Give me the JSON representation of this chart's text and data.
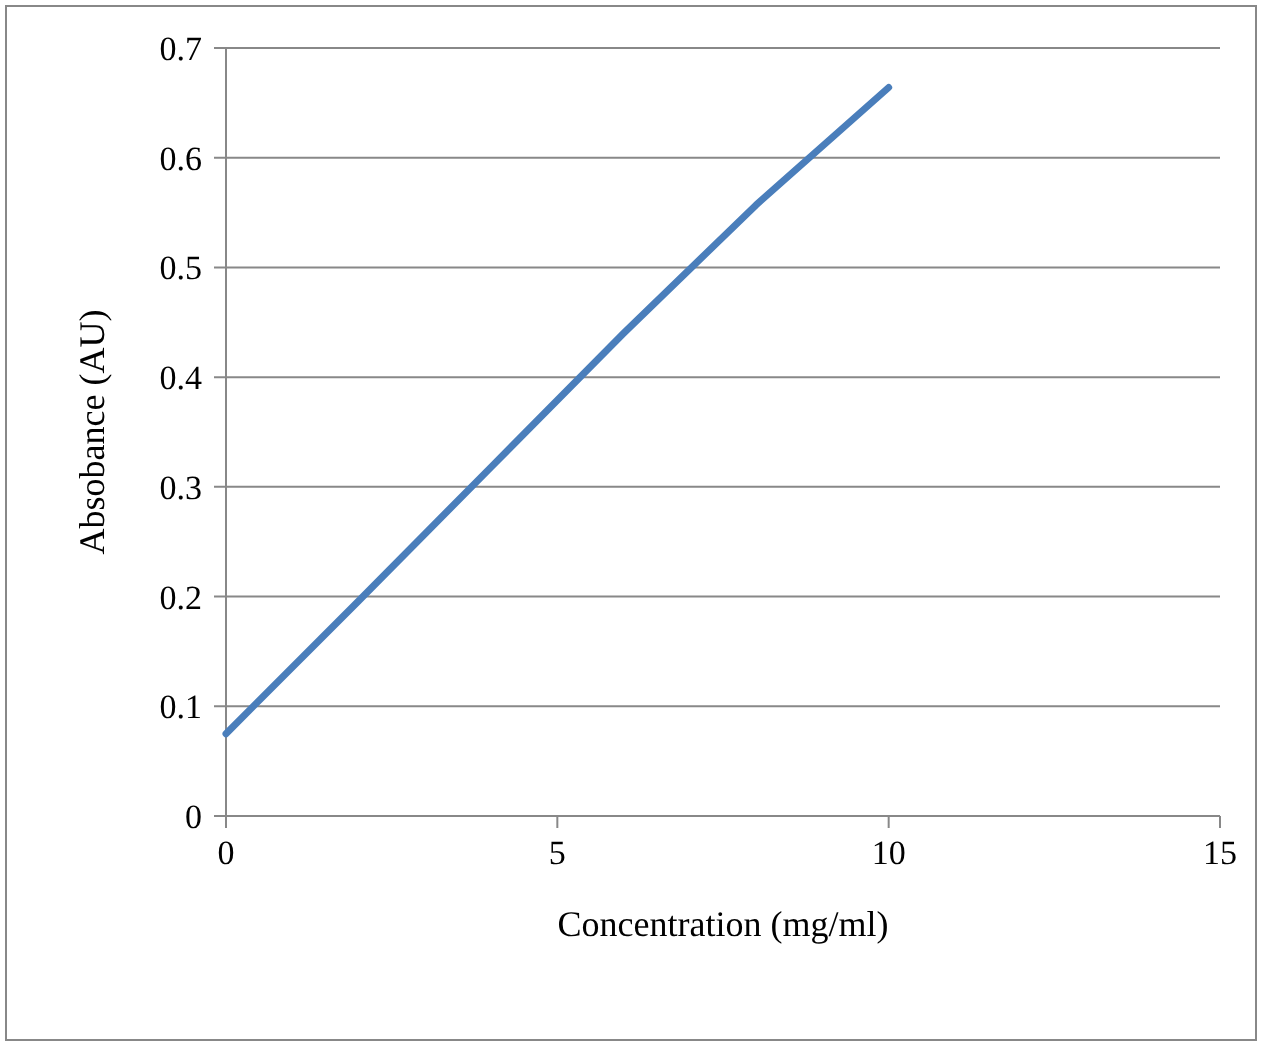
{
  "chart_data": {
    "type": "line",
    "xlabel": "Concentration (mg/ml)",
    "ylabel": "Absobance (AU)",
    "x": [
      0,
      2,
      4,
      6,
      8,
      10
    ],
    "series": [
      {
        "color": "#4a7ebb",
        "values": [
          0.075,
          0.196,
          0.318,
          0.44,
          0.557,
          0.664
        ]
      }
    ],
    "xlim": [
      0,
      15
    ],
    "xticks": [
      0,
      5,
      10,
      15
    ],
    "ylim": [
      0,
      0.7
    ],
    "yticks": [
      0,
      0.1,
      0.2,
      0.3,
      0.4,
      0.5,
      0.6,
      0.7
    ],
    "grid": "y",
    "marker": "none",
    "line_style": "solid"
  }
}
